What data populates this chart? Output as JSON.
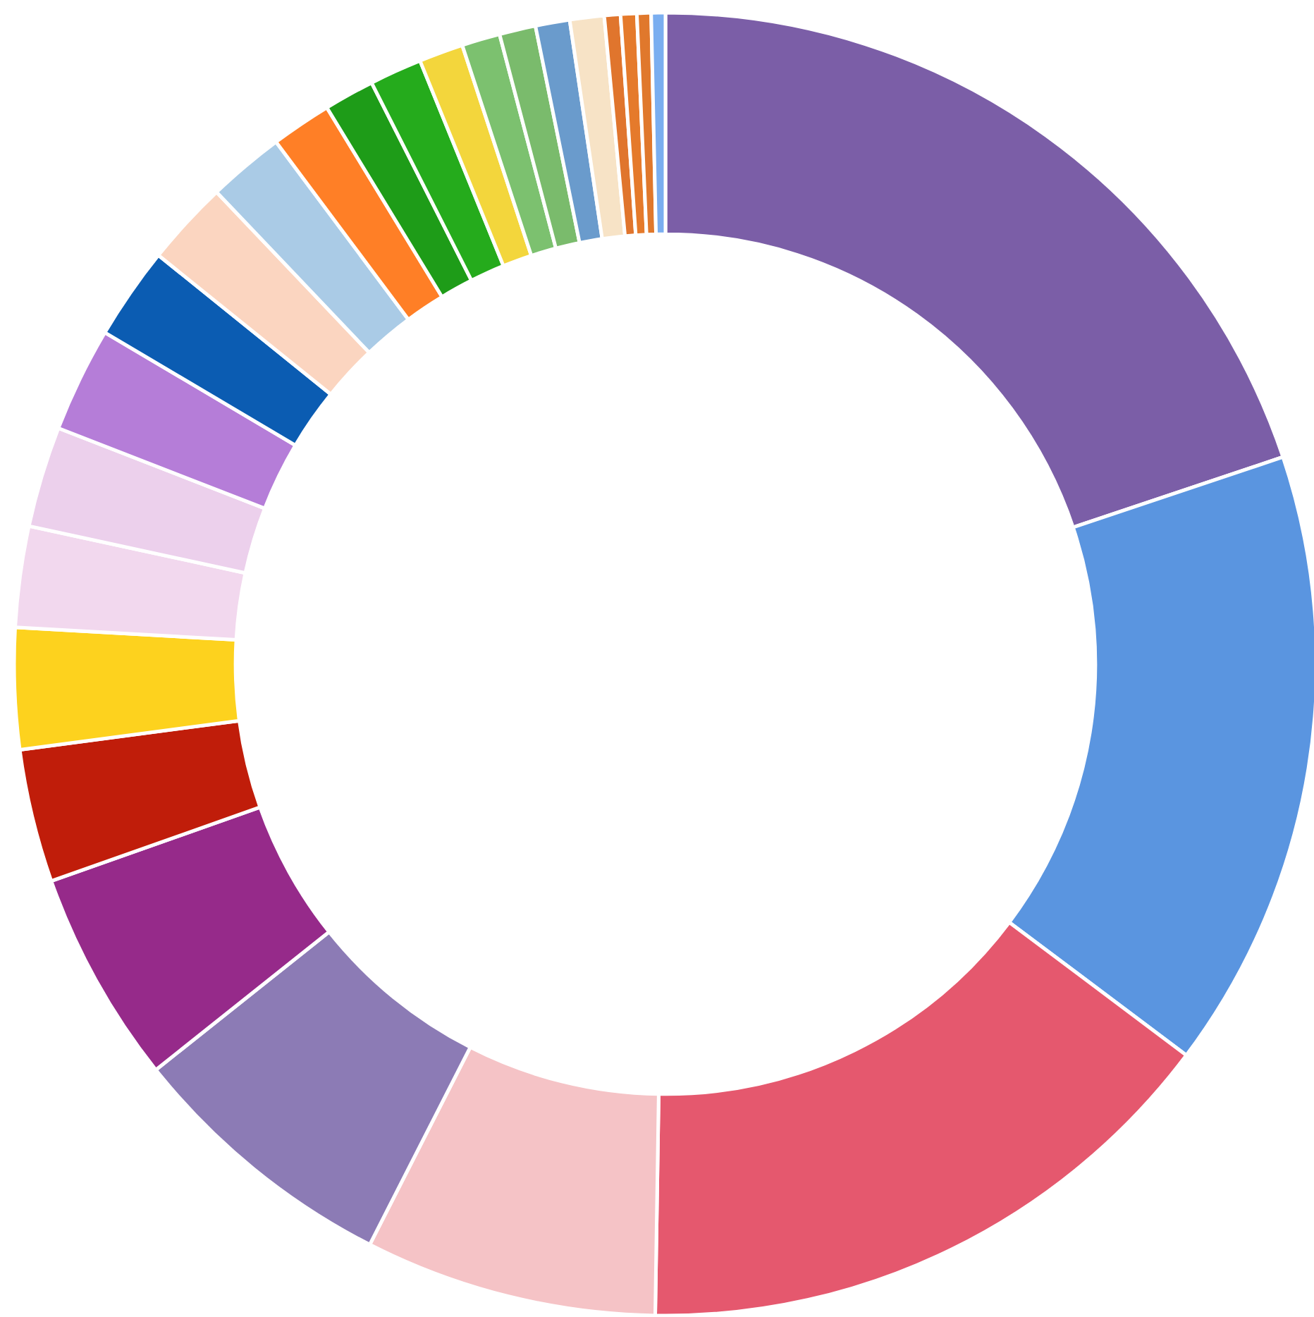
{
  "chart_data": {
    "type": "donut",
    "categories": [
      null,
      null,
      null,
      null,
      null,
      null,
      null,
      null,
      null,
      null,
      null,
      null,
      null,
      null,
      null,
      null,
      null,
      null,
      null,
      null,
      null,
      null,
      null,
      null,
      null,
      null
    ],
    "values": [
      19.85,
      15.4,
      15.0,
      7.25,
      6.8,
      5.3,
      3.3,
      3.0,
      2.5,
      2.5,
      2.6,
      2.3,
      2.1,
      1.9,
      1.5,
      1.25,
      1.3,
      1.1,
      0.95,
      0.9,
      0.85,
      0.85,
      0.4,
      0.4,
      0.35,
      0.35
    ],
    "colors": [
      "#7b5ea7",
      "#5a95e0",
      "#e5586e",
      "#f5c3c6",
      "#8c7bb5",
      "#962a8a",
      "#c01d0a",
      "#fdd21e",
      "#f2d8ee",
      "#ecd0ec",
      "#b57dd8",
      "#0b5cb2",
      "#fbd5c0",
      "#aacbe6",
      "#ff7f26",
      "#1e9c18",
      "#25ab1c",
      "#f3d63c",
      "#7cc16f",
      "#7abb6c",
      "#6a9bcc",
      "#f7e3c6",
      "#e0752d",
      "#e57a2b",
      "#e0782c",
      "#7aaef0"
    ],
    "legend": false
  }
}
